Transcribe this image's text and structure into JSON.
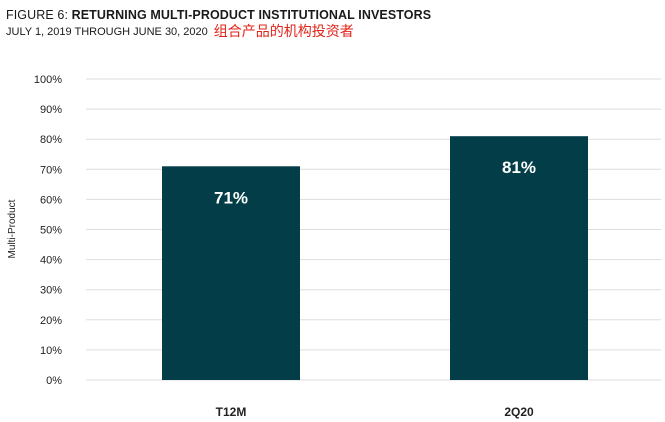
{
  "header": {
    "title_prefix": "FIGURE 6: ",
    "title_main": "RETURNING MULTI-PRODUCT INSTITUTIONAL INVESTORS",
    "subtitle": "JULY 1, 2019 THROUGH JUNE 30, 2020",
    "annotation": "组合产品的机构投资者"
  },
  "colors": {
    "bar": "#033d47",
    "bar_label": "#ffffff",
    "gridline": "#dddddd",
    "annotation": "#e2231a",
    "axis_text": "#222222"
  },
  "chart_data": {
    "type": "bar",
    "categories": [
      "T12M",
      "2Q20"
    ],
    "values": [
      71,
      81
    ],
    "data_labels": [
      "71%",
      "81%"
    ],
    "ylabel": "Multi-Product",
    "ylim": [
      0,
      100
    ],
    "yticks": [
      "0%",
      "10%",
      "20%",
      "30%",
      "40%",
      "50%",
      "60%",
      "70%",
      "80%",
      "90%",
      "100%"
    ],
    "grid": true,
    "legend": "none"
  }
}
